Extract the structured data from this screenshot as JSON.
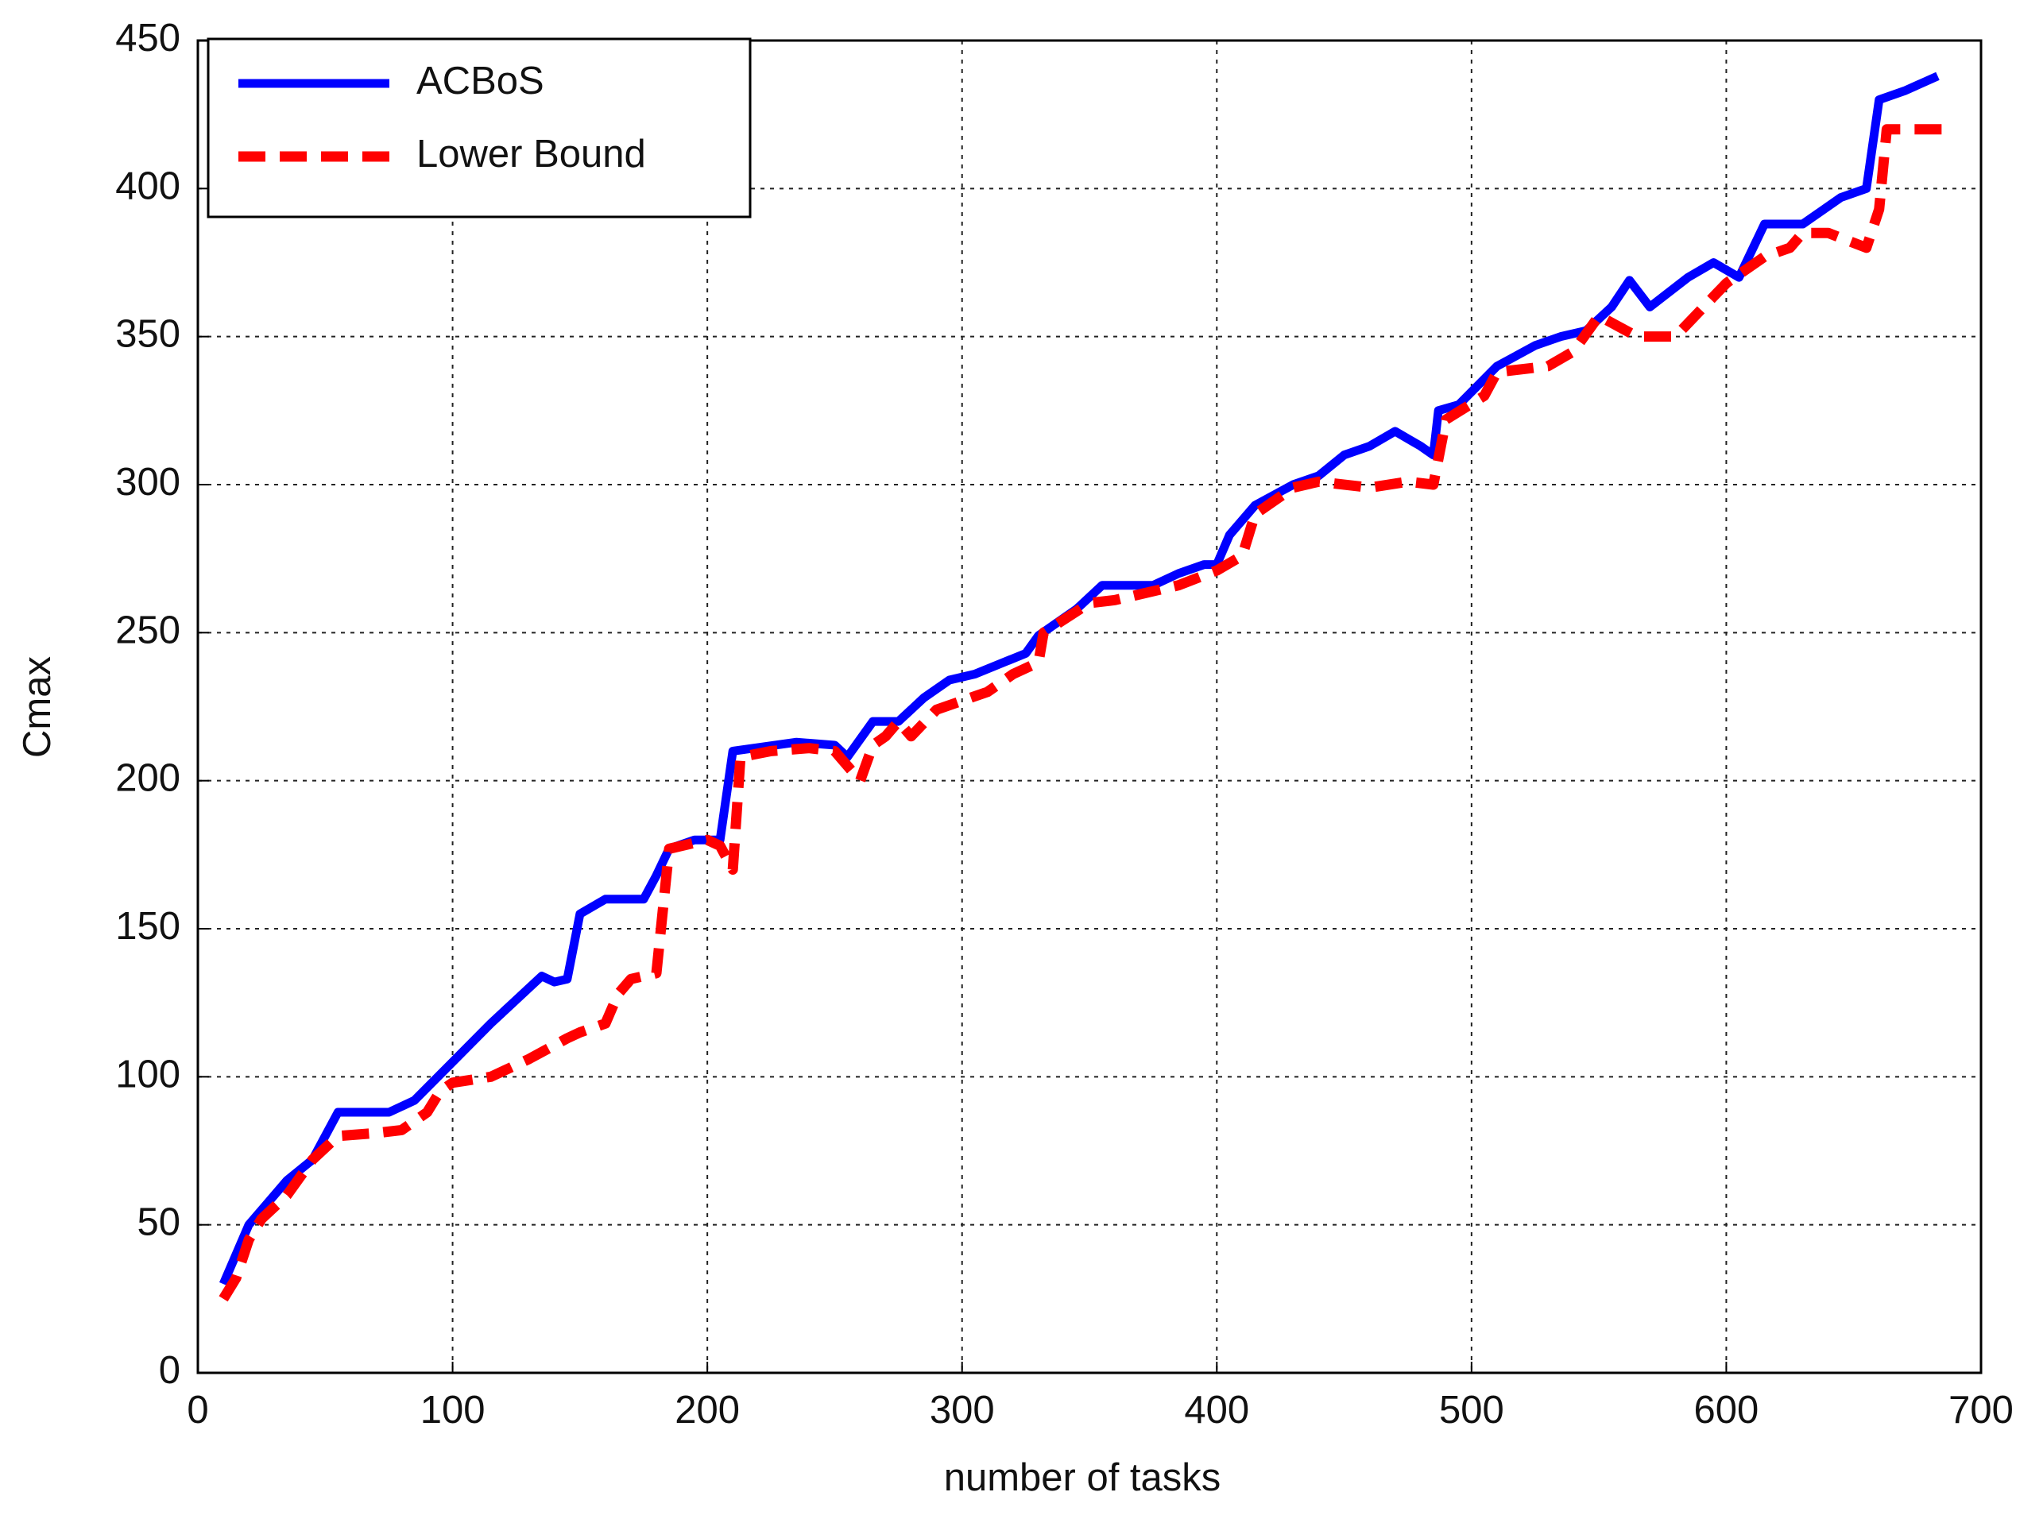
{
  "chart_data": {
    "type": "line",
    "x_label": "number of tasks",
    "y_label": "Cmax",
    "xlim": [
      0,
      700
    ],
    "ylim": [
      0,
      450
    ],
    "xticks": [
      0,
      100,
      200,
      300,
      400,
      500,
      600,
      700
    ],
    "yticks": [
      0,
      50,
      100,
      150,
      200,
      250,
      300,
      350,
      400,
      450
    ],
    "grid": true,
    "legend": "upper-left",
    "series": [
      {
        "name": "ACBoS",
        "color": "#0000ff",
        "style": "solid",
        "x": [
          10,
          20,
          25,
          35,
          45,
          55,
          75,
          85,
          100,
          115,
          130,
          135,
          140,
          145,
          150,
          160,
          175,
          180,
          185,
          195,
          205,
          210,
          235,
          250,
          255,
          265,
          275,
          285,
          295,
          305,
          325,
          330,
          345,
          355,
          375,
          385,
          395,
          400,
          405,
          415,
          430,
          440,
          450,
          460,
          470,
          480,
          485,
          487,
          495,
          510,
          525,
          535,
          545,
          555,
          562,
          570,
          585,
          595,
          605,
          615,
          630,
          645,
          655,
          660,
          670,
          683
        ],
        "values": [
          30,
          50,
          55,
          65,
          72,
          88,
          88,
          92,
          105,
          118,
          130,
          134,
          132,
          133,
          155,
          160,
          160,
          168,
          177,
          180,
          180,
          210,
          213,
          212,
          208,
          220,
          220,
          228,
          234,
          236,
          243,
          249,
          258,
          266,
          266,
          270,
          273,
          273,
          283,
          293,
          300,
          303,
          310,
          313,
          318,
          313,
          310,
          325,
          327,
          340,
          347,
          350,
          352,
          360,
          369,
          360,
          370,
          375,
          370,
          388,
          388,
          397,
          400,
          430,
          433,
          438
        ]
      },
      {
        "name": "Lower Bound",
        "color": "#ff0000",
        "style": "dashed",
        "x": [
          10,
          15,
          20,
          25,
          35,
          45,
          55,
          70,
          80,
          90,
          95,
          100,
          115,
          130,
          145,
          150,
          160,
          165,
          170,
          180,
          185,
          200,
          205,
          210,
          213,
          225,
          240,
          250,
          260,
          265,
          270,
          275,
          280,
          290,
          300,
          310,
          320,
          330,
          332,
          350,
          360,
          370,
          385,
          400,
          410,
          415,
          430,
          440,
          460,
          475,
          485,
          490,
          505,
          510,
          530,
          540,
          550,
          565,
          580,
          600,
          615,
          625,
          630,
          640,
          655,
          660,
          663,
          685
        ],
        "values": [
          25,
          32,
          45,
          52,
          60,
          72,
          80,
          81,
          82,
          88,
          95,
          98,
          100,
          106,
          113,
          115,
          118,
          128,
          133,
          135,
          177,
          180,
          178,
          170,
          208,
          210,
          211,
          210,
          200,
          212,
          215,
          220,
          215,
          224,
          227,
          230,
          236,
          240,
          250,
          260,
          261,
          263,
          266,
          271,
          276,
          290,
          299,
          301,
          299,
          301,
          300,
          322,
          330,
          338,
          340,
          345,
          357,
          350,
          350,
          368,
          377,
          380,
          385,
          385,
          380,
          393,
          420,
          420
        ]
      }
    ]
  }
}
